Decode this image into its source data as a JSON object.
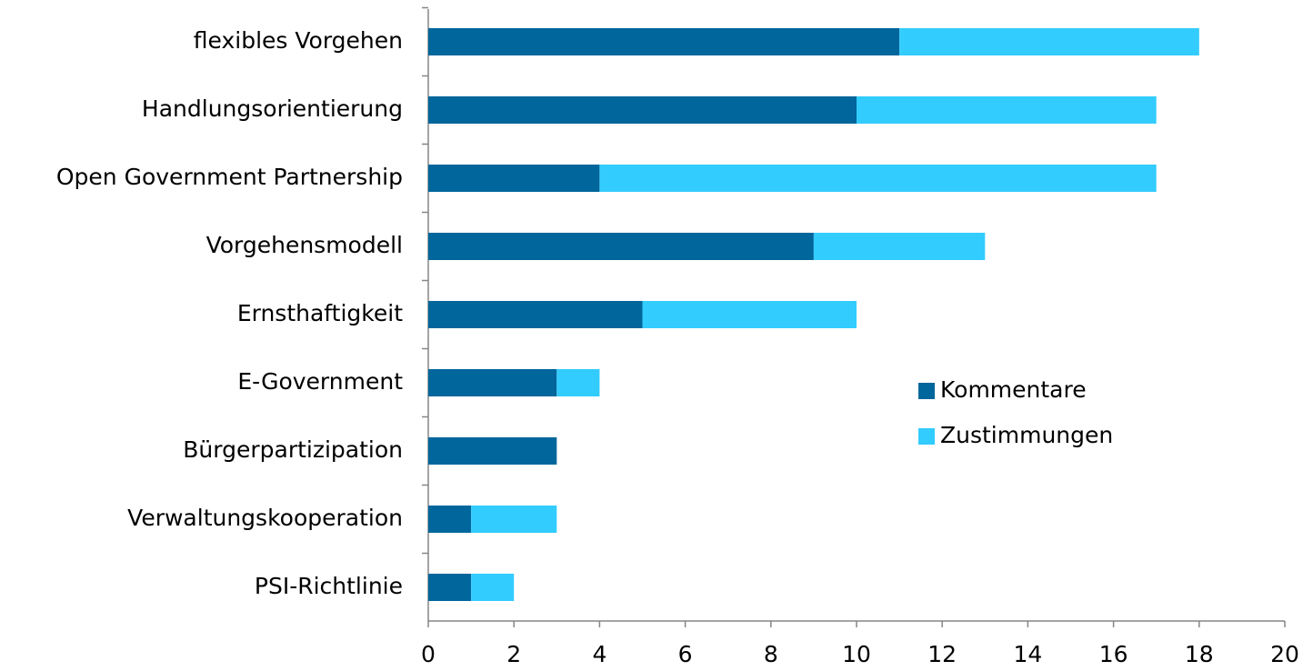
{
  "chart_data": {
    "type": "bar",
    "orientation": "horizontal",
    "stacked": true,
    "categories": [
      "flexibles Vorgehen",
      "Handlungsorientierung",
      "Open Government Partnership",
      "Vorgehensmodell",
      "Ernsthaftigkeit",
      "E-Government",
      "Bürgerpartizipation",
      "Verwaltungskooperation",
      "PSI-Richtlinie"
    ],
    "series": [
      {
        "name": "Kommentare",
        "color": "#00669b",
        "values": [
          11,
          10,
          4,
          9,
          5,
          3,
          3,
          1,
          1
        ]
      },
      {
        "name": "Zustimmungen",
        "color": "#33ccff",
        "values": [
          7,
          7,
          13,
          4,
          5,
          1,
          0,
          2,
          1
        ]
      }
    ],
    "xlim": [
      0,
      20
    ],
    "xticks": [
      0,
      2,
      4,
      6,
      8,
      10,
      12,
      14,
      16,
      18,
      20
    ],
    "grid": false,
    "legend": "right"
  }
}
